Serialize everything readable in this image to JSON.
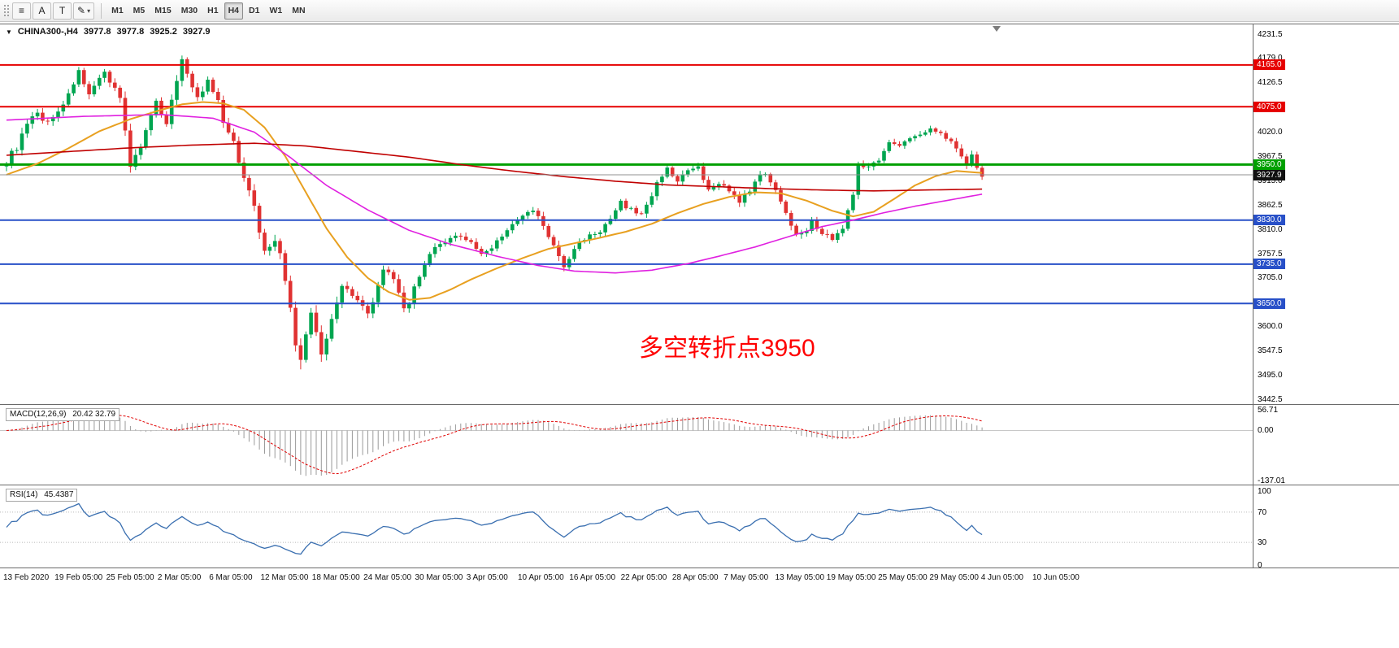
{
  "toolbar": {
    "icon_buttons": [
      {
        "name": "line-studies-icon",
        "glyph": "≡"
      },
      {
        "name": "text-label-button",
        "glyph": "A"
      },
      {
        "name": "text-box-button",
        "glyph": "T"
      },
      {
        "name": "draw-pencil-button",
        "glyph": "✎",
        "caret": "▾"
      }
    ],
    "timeframes": [
      {
        "label": "M1",
        "active": false
      },
      {
        "label": "M5",
        "active": false
      },
      {
        "label": "M15",
        "active": false
      },
      {
        "label": "M30",
        "active": false
      },
      {
        "label": "H1",
        "active": false
      },
      {
        "label": "H4",
        "active": true
      },
      {
        "label": "D1",
        "active": false
      },
      {
        "label": "W1",
        "active": false
      },
      {
        "label": "MN",
        "active": false
      }
    ]
  },
  "chart": {
    "header": {
      "caret": "▼",
      "title": "CHINA300-,H4",
      "open": "3977.8",
      "high": "3977.8",
      "low": "3925.2",
      "close": "3927.9"
    },
    "annotation": {
      "text": "多空转折点3950",
      "color": "#ff0000"
    }
  },
  "chart_data": {
    "type": "candlestick",
    "symbol": "CHINA300-",
    "timeframe": "H4",
    "bar_count": 190,
    "colors": {
      "up": "#00a550",
      "down": "#e03232",
      "background": "#ffffff"
    },
    "price_anchors": [
      [
        0,
        3958,
        14
      ],
      [
        2,
        3988,
        16
      ],
      [
        4,
        4035,
        16
      ],
      [
        6,
        4060,
        15
      ],
      [
        8,
        4040,
        14
      ],
      [
        10,
        4068,
        14
      ],
      [
        12,
        4098,
        16
      ],
      [
        14,
        4158,
        18
      ],
      [
        15,
        4120,
        16
      ],
      [
        16,
        4095,
        15
      ],
      [
        18,
        4132,
        15
      ],
      [
        19,
        4148,
        14
      ],
      [
        21,
        4118,
        14
      ],
      [
        22,
        4092,
        16
      ],
      [
        24,
        3952,
        20
      ],
      [
        26,
        3988,
        16
      ],
      [
        28,
        4052,
        15
      ],
      [
        29,
        4082,
        14
      ],
      [
        31,
        4042,
        14
      ],
      [
        33,
        4130,
        18
      ],
      [
        34,
        4182,
        18
      ],
      [
        36,
        4120,
        16
      ],
      [
        37,
        4092,
        15
      ],
      [
        39,
        4128,
        14
      ],
      [
        41,
        4085,
        14
      ],
      [
        42,
        4040,
        15
      ],
      [
        44,
        3995,
        15
      ],
      [
        45,
        3958,
        16
      ],
      [
        47,
        3898,
        18
      ],
      [
        48,
        3855,
        20
      ],
      [
        50,
        3762,
        22
      ],
      [
        52,
        3792,
        20
      ],
      [
        53,
        3752,
        20
      ],
      [
        55,
        3645,
        24
      ],
      [
        56,
        3560,
        30
      ],
      [
        57,
        3520,
        30
      ],
      [
        58,
        3578,
        22
      ],
      [
        59,
        3632,
        20
      ],
      [
        60,
        3585,
        22
      ],
      [
        61,
        3542,
        22
      ],
      [
        62,
        3575,
        20
      ],
      [
        63,
        3622,
        18
      ],
      [
        65,
        3688,
        16
      ],
      [
        67,
        3672,
        14
      ],
      [
        68,
        3662,
        14
      ],
      [
        70,
        3625,
        16
      ],
      [
        71,
        3648,
        14
      ],
      [
        73,
        3728,
        14
      ],
      [
        75,
        3698,
        13
      ],
      [
        76,
        3668,
        14
      ],
      [
        77,
        3640,
        20
      ],
      [
        78,
        3652,
        16
      ],
      [
        79,
        3682,
        14
      ],
      [
        81,
        3738,
        13
      ],
      [
        83,
        3768,
        12
      ],
      [
        85,
        3782,
        11
      ],
      [
        88,
        3798,
        11
      ],
      [
        90,
        3782,
        11
      ],
      [
        92,
        3755,
        12
      ],
      [
        94,
        3772,
        11
      ],
      [
        96,
        3798,
        11
      ],
      [
        98,
        3818,
        11
      ],
      [
        100,
        3838,
        11
      ],
      [
        102,
        3852,
        12
      ],
      [
        104,
        3818,
        12
      ],
      [
        106,
        3772,
        13
      ],
      [
        108,
        3728,
        14
      ],
      [
        110,
        3768,
        12
      ],
      [
        112,
        3792,
        11
      ],
      [
        115,
        3806,
        10
      ],
      [
        117,
        3830,
        11
      ],
      [
        119,
        3868,
        12
      ],
      [
        121,
        3852,
        11
      ],
      [
        123,
        3842,
        11
      ],
      [
        125,
        3886,
        12
      ],
      [
        127,
        3928,
        13
      ],
      [
        128,
        3946,
        12
      ],
      [
        130,
        3912,
        12
      ],
      [
        132,
        3936,
        11
      ],
      [
        134,
        3942,
        11
      ],
      [
        136,
        3892,
        12
      ],
      [
        138,
        3912,
        11
      ],
      [
        140,
        3895,
        11
      ],
      [
        142,
        3866,
        12
      ],
      [
        144,
        3896,
        11
      ],
      [
        146,
        3925,
        11
      ],
      [
        147,
        3932,
        11
      ],
      [
        149,
        3898,
        12
      ],
      [
        151,
        3842,
        13
      ],
      [
        153,
        3802,
        13
      ],
      [
        155,
        3812,
        12
      ],
      [
        156,
        3826,
        11
      ],
      [
        158,
        3802,
        12
      ],
      [
        160,
        3792,
        12
      ],
      [
        162,
        3812,
        12
      ],
      [
        164,
        3885,
        14
      ],
      [
        165,
        3958,
        14
      ],
      [
        167,
        3942,
        12
      ],
      [
        169,
        3962,
        11
      ],
      [
        171,
        4002,
        11
      ],
      [
        173,
        3988,
        11
      ],
      [
        175,
        4008,
        10
      ],
      [
        177,
        4012,
        10
      ],
      [
        179,
        4028,
        10
      ],
      [
        181,
        4022,
        10
      ],
      [
        183,
        3998,
        11
      ],
      [
        185,
        3972,
        12
      ],
      [
        186,
        3952,
        12
      ],
      [
        187,
        3968,
        11
      ],
      [
        188,
        3942,
        12
      ],
      [
        189,
        3928,
        10
      ]
    ],
    "moving_averages": [
      {
        "name": "fast-ma",
        "color": "#e8a020",
        "width": 2,
        "anchors": [
          [
            0,
            3928
          ],
          [
            6,
            3952
          ],
          [
            12,
            3985
          ],
          [
            18,
            4022
          ],
          [
            24,
            4048
          ],
          [
            30,
            4068
          ],
          [
            34,
            4080
          ],
          [
            38,
            4085
          ],
          [
            42,
            4082
          ],
          [
            46,
            4068
          ],
          [
            50,
            4030
          ],
          [
            54,
            3968
          ],
          [
            58,
            3890
          ],
          [
            62,
            3812
          ],
          [
            66,
            3750
          ],
          [
            70,
            3705
          ],
          [
            74,
            3675
          ],
          [
            78,
            3658
          ],
          [
            82,
            3662
          ],
          [
            86,
            3680
          ],
          [
            90,
            3702
          ],
          [
            95,
            3726
          ],
          [
            100,
            3748
          ],
          [
            105,
            3768
          ],
          [
            110,
            3780
          ],
          [
            115,
            3792
          ],
          [
            120,
            3805
          ],
          [
            125,
            3822
          ],
          [
            130,
            3845
          ],
          [
            135,
            3865
          ],
          [
            140,
            3880
          ],
          [
            145,
            3890
          ],
          [
            150,
            3888
          ],
          [
            155,
            3872
          ],
          [
            160,
            3850
          ],
          [
            164,
            3838
          ],
          [
            168,
            3848
          ],
          [
            172,
            3876
          ],
          [
            176,
            3905
          ],
          [
            180,
            3925
          ],
          [
            184,
            3936
          ],
          [
            189,
            3932
          ]
        ]
      },
      {
        "name": "medium-ma",
        "color": "#e020e0",
        "width": 1.6,
        "anchors": [
          [
            0,
            4046
          ],
          [
            15,
            4054
          ],
          [
            30,
            4058
          ],
          [
            40,
            4050
          ],
          [
            48,
            4020
          ],
          [
            55,
            3965
          ],
          [
            62,
            3905
          ],
          [
            70,
            3852
          ],
          [
            78,
            3808
          ],
          [
            86,
            3778
          ],
          [
            95,
            3752
          ],
          [
            103,
            3732
          ],
          [
            110,
            3720
          ],
          [
            118,
            3716
          ],
          [
            125,
            3722
          ],
          [
            132,
            3736
          ],
          [
            138,
            3752
          ],
          [
            145,
            3772
          ],
          [
            152,
            3796
          ],
          [
            158,
            3816
          ],
          [
            164,
            3830
          ],
          [
            170,
            3846
          ],
          [
            176,
            3860
          ],
          [
            182,
            3872
          ],
          [
            189,
            3886
          ]
        ]
      },
      {
        "name": "slow-ma",
        "color": "#c00000",
        "width": 1.6,
        "anchors": [
          [
            0,
            3970
          ],
          [
            12,
            3978
          ],
          [
            24,
            3986
          ],
          [
            36,
            3992
          ],
          [
            48,
            3996
          ],
          [
            58,
            3990
          ],
          [
            68,
            3978
          ],
          [
            78,
            3966
          ],
          [
            88,
            3950
          ],
          [
            98,
            3936
          ],
          [
            108,
            3924
          ],
          [
            118,
            3914
          ],
          [
            128,
            3906
          ],
          [
            138,
            3902
          ],
          [
            148,
            3898
          ],
          [
            158,
            3895
          ],
          [
            168,
            3893
          ],
          [
            178,
            3895
          ],
          [
            189,
            3897
          ]
        ]
      }
    ],
    "hlines": [
      {
        "price": 4165.0,
        "label": "4165.0",
        "color": "#e60000",
        "width": 2
      },
      {
        "price": 4075.0,
        "label": "4075.0",
        "color": "#e60000",
        "width": 2
      },
      {
        "price": 3950.0,
        "label": "3950.0",
        "color": "#00a000",
        "width": 3
      },
      {
        "price": 3830.0,
        "label": "3830.0",
        "color": "#2850c8",
        "width": 2
      },
      {
        "price": 3735.0,
        "label": "3735.0",
        "color": "#2850c8",
        "width": 2
      },
      {
        "price": 3650.0,
        "label": "3650.0",
        "color": "#2850c8",
        "width": 2
      }
    ],
    "current_price": {
      "value": 3927.9,
      "label": "3927.9",
      "line_color": "#909090",
      "badge_color": "#111111"
    },
    "y_axis": {
      "plot_top_price": 4252.6,
      "plot_bottom_price": 3432.8,
      "ticks": [
        "4231.5",
        "4179.0",
        "4126.5",
        "4020.0",
        "3967.5",
        "3915.0",
        "3862.5",
        "3810.0",
        "3757.5",
        "3705.0",
        "3600.0",
        "3547.5",
        "3495.0",
        "3442.5"
      ]
    },
    "x_axis": {
      "labels": [
        "13 Feb 2020",
        "19 Feb 05:00",
        "25 Feb 05:00",
        "2 Mar 05:00",
        "6 Mar 05:00",
        "12 Mar 05:00",
        "18 Mar 05:00",
        "24 Mar 05:00",
        "30 Mar 05:00",
        "3 Apr 05:00",
        "10 Apr 05:00",
        "16 Apr 05:00",
        "22 Apr 05:00",
        "28 Apr 05:00",
        "7 May 05:00",
        "13 May 05:00",
        "19 May 05:00",
        "25 May 05:00",
        "29 May 05:00",
        "4 Jun 05:00",
        "10 Jun 05:00"
      ]
    },
    "indicators": {
      "macd": {
        "label": "MACD(12,26,9)",
        "values_text": "20.42 32.79",
        "fast": 12,
        "slow": 26,
        "signal": 9,
        "axis_max": "56.71",
        "axis_zero": "0.00",
        "axis_min": "-137.01",
        "histogram_color": "#9a9a9a",
        "signal_color": "#e00000"
      },
      "rsi": {
        "label": "RSI(14)",
        "value_text": "45.4387",
        "period": 14,
        "axis_labels": [
          "100",
          "70",
          "30",
          "0"
        ],
        "levels": [
          70,
          30
        ],
        "line_color": "#3a6fb0"
      }
    }
  }
}
